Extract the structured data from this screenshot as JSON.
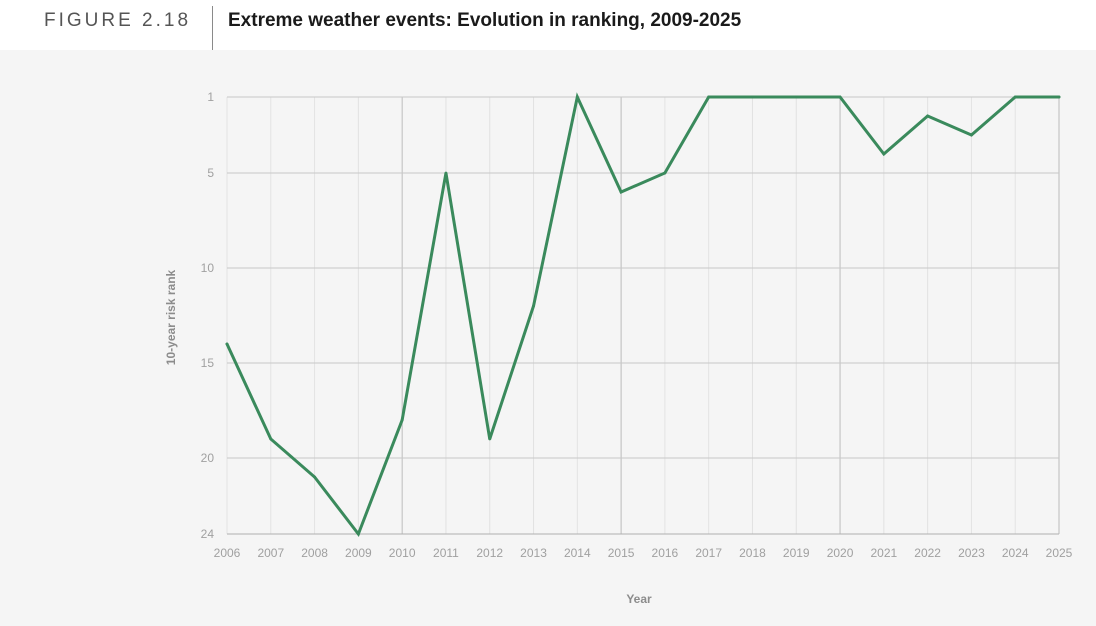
{
  "figure": {
    "number": "FIGURE 2.18",
    "title": "Extreme weather events: Evolution in ranking, 2009-2025"
  },
  "chart_data": {
    "type": "line",
    "title": "Extreme weather events: Evolution in ranking, 2009-2025",
    "xlabel": "Year",
    "ylabel": "10-year risk rank",
    "x": [
      "2006",
      "2007",
      "2008",
      "2009",
      "2010",
      "2011",
      "2012",
      "2013",
      "2014",
      "2015",
      "2016",
      "2017",
      "2018",
      "2019",
      "2020",
      "2021",
      "2022",
      "2023",
      "2024",
      "2025"
    ],
    "y_ticks": [
      1,
      5,
      10,
      15,
      20,
      24
    ],
    "ylim": [
      1,
      24
    ],
    "y_inverted": true,
    "series": [
      {
        "values": [
          14,
          19,
          21,
          24,
          18,
          5,
          19,
          12,
          1,
          6,
          5,
          1,
          1,
          1,
          1,
          4,
          2,
          3,
          1,
          1
        ],
        "color": "#3a8a5c"
      }
    ],
    "grid": true,
    "legend": "none"
  }
}
